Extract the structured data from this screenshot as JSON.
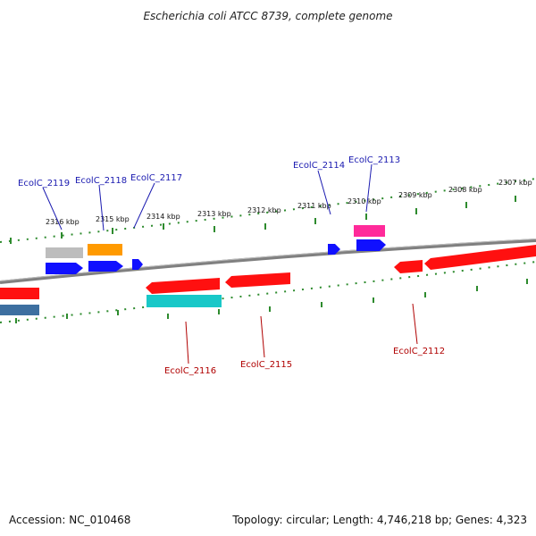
{
  "title": "Escherichia coli ATCC 8739, complete genome",
  "footer": {
    "accession": "Accession: NC_010468",
    "topology": "Topology: circular; Length: 4,746,218 bp; Genes: 4,323"
  },
  "scale_labels": [
    "2316 kbp",
    "2315 kbp",
    "2314 kbp",
    "2313 kbp",
    "2312 kbp",
    "2311 kbp",
    "2310 kbp",
    "2309 kbp",
    "2308 kbp",
    "2307 kbp"
  ],
  "gene_labels_top": [
    "EcolC_2119",
    "EcolC_2118",
    "EcolC_2117",
    "EcolC_2114",
    "EcolC_2113"
  ],
  "gene_labels_bottom": [
    "EcolC_2116",
    "EcolC_2115",
    "EcolC_2112"
  ],
  "colors": {
    "backbone": "#808080",
    "tick": "#2e8b2e",
    "label_blue": "#1a1ab0",
    "label_red": "#b00000",
    "gene_red": "#ff1010",
    "gene_blue": "#1010ff",
    "gene_gray": "#bdbdbd",
    "gene_orange": "#ff9a00",
    "gene_magenta": "#ff2a9a",
    "gene_cyan": "#19c8c8",
    "gene_steel": "#3d6fa0"
  }
}
